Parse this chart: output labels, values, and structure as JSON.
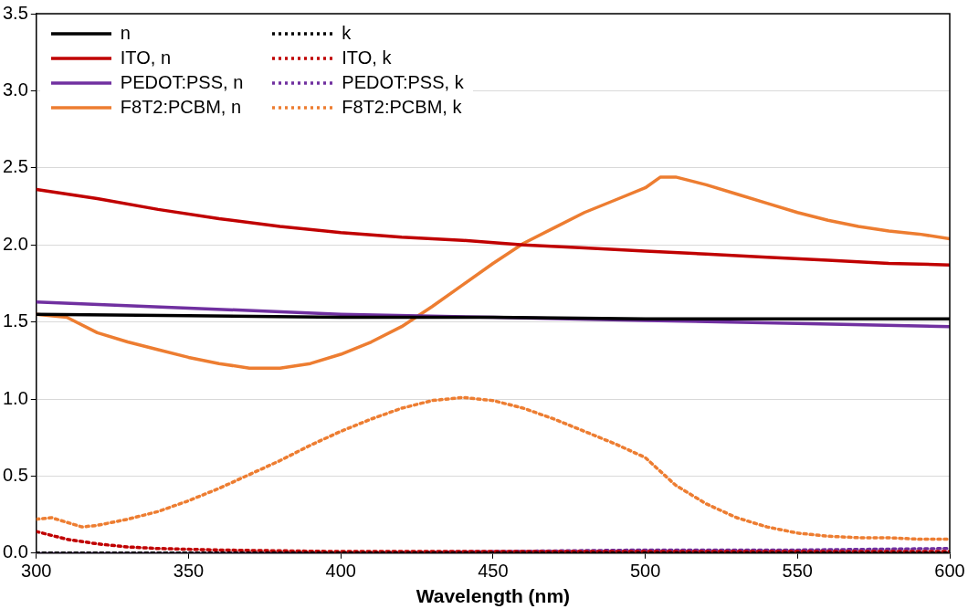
{
  "chart_data": {
    "type": "line",
    "xlabel": "Wavelength (nm)",
    "xlim": [
      300,
      600
    ],
    "xticks": [
      300,
      350,
      400,
      450,
      500,
      550,
      600
    ],
    "ylim": [
      0,
      3.5
    ],
    "yticks": [
      {
        "value": 0,
        "label": "0.0"
      },
      {
        "value": 0.5,
        "label": "0.5"
      },
      {
        "value": 1,
        "label": "1.0"
      },
      {
        "value": 1.5,
        "label": "1.5"
      },
      {
        "value": 2,
        "label": "2.0"
      },
      {
        "value": 2.5,
        "label": "2.5"
      },
      {
        "value": 3,
        "label": "3.0"
      },
      {
        "value": 3.5,
        "label": "3.5"
      }
    ],
    "grid": "y",
    "legend": "top left",
    "marker": "none",
    "series": [
      {
        "name": "n",
        "color": "#000000",
        "line_style": "solid",
        "x": [
          300,
          350,
          400,
          450,
          500,
          550,
          600
        ],
        "values": [
          1.55,
          1.54,
          1.53,
          1.53,
          1.52,
          1.52,
          1.52
        ]
      },
      {
        "name": "k",
        "color": "#000000",
        "line_style": "dotted",
        "x": [
          300,
          400,
          500,
          600
        ],
        "values": [
          0,
          0,
          0,
          0
        ]
      },
      {
        "name": "ITO, n",
        "color": "#c00000",
        "line_style": "solid",
        "x": [
          300,
          320,
          340,
          360,
          380,
          400,
          420,
          440,
          460,
          480,
          500,
          520,
          540,
          560,
          580,
          600
        ],
        "values": [
          2.36,
          2.3,
          2.23,
          2.17,
          2.12,
          2.08,
          2.05,
          2.03,
          2.0,
          1.98,
          1.96,
          1.94,
          1.92,
          1.9,
          1.88,
          1.87
        ]
      },
      {
        "name": "ITO, k",
        "color": "#c00000",
        "line_style": "dotted",
        "x": [
          300,
          310,
          320,
          330,
          340,
          360,
          400,
          500,
          600
        ],
        "values": [
          0.14,
          0.09,
          0.06,
          0.04,
          0.03,
          0.02,
          0.01,
          0.01,
          0.01
        ]
      },
      {
        "name": "PEDOT:PSS, n",
        "color": "#7030a0",
        "line_style": "solid",
        "x": [
          300,
          350,
          400,
          450,
          500,
          550,
          600
        ],
        "values": [
          1.63,
          1.59,
          1.55,
          1.53,
          1.51,
          1.49,
          1.47
        ]
      },
      {
        "name": "PEDOT:PSS, k",
        "color": "#7030a0",
        "line_style": "dotted",
        "x": [
          300,
          400,
          450,
          500,
          550,
          600
        ],
        "values": [
          0,
          0,
          0.01,
          0.02,
          0.02,
          0.03
        ]
      },
      {
        "name": "F8T2:PCBM, n",
        "color": "#ed7d31",
        "line_style": "solid",
        "x": [
          300,
          310,
          320,
          330,
          340,
          350,
          360,
          370,
          380,
          390,
          400,
          410,
          420,
          430,
          440,
          450,
          460,
          470,
          480,
          490,
          500,
          505,
          510,
          520,
          530,
          540,
          550,
          560,
          570,
          580,
          590,
          600
        ],
        "values": [
          1.55,
          1.53,
          1.43,
          1.37,
          1.32,
          1.27,
          1.23,
          1.2,
          1.2,
          1.23,
          1.29,
          1.37,
          1.47,
          1.6,
          1.74,
          1.88,
          2.01,
          2.11,
          2.21,
          2.29,
          2.37,
          2.44,
          2.44,
          2.39,
          2.33,
          2.27,
          2.21,
          2.16,
          2.12,
          2.09,
          2.07,
          2.04
        ]
      },
      {
        "name": "F8T2:PCBM, k",
        "color": "#ed7d31",
        "line_style": "dotted",
        "x": [
          300,
          305,
          315,
          320,
          330,
          340,
          350,
          360,
          370,
          380,
          390,
          400,
          410,
          420,
          430,
          440,
          450,
          460,
          470,
          480,
          490,
          500,
          505,
          510,
          520,
          530,
          540,
          550,
          560,
          570,
          580,
          590,
          600
        ],
        "values": [
          0.22,
          0.23,
          0.17,
          0.18,
          0.22,
          0.27,
          0.34,
          0.42,
          0.51,
          0.6,
          0.7,
          0.79,
          0.87,
          0.94,
          0.99,
          1.01,
          0.99,
          0.94,
          0.87,
          0.79,
          0.71,
          0.62,
          0.53,
          0.44,
          0.32,
          0.23,
          0.17,
          0.13,
          0.11,
          0.1,
          0.1,
          0.09,
          0.09
        ]
      }
    ]
  }
}
